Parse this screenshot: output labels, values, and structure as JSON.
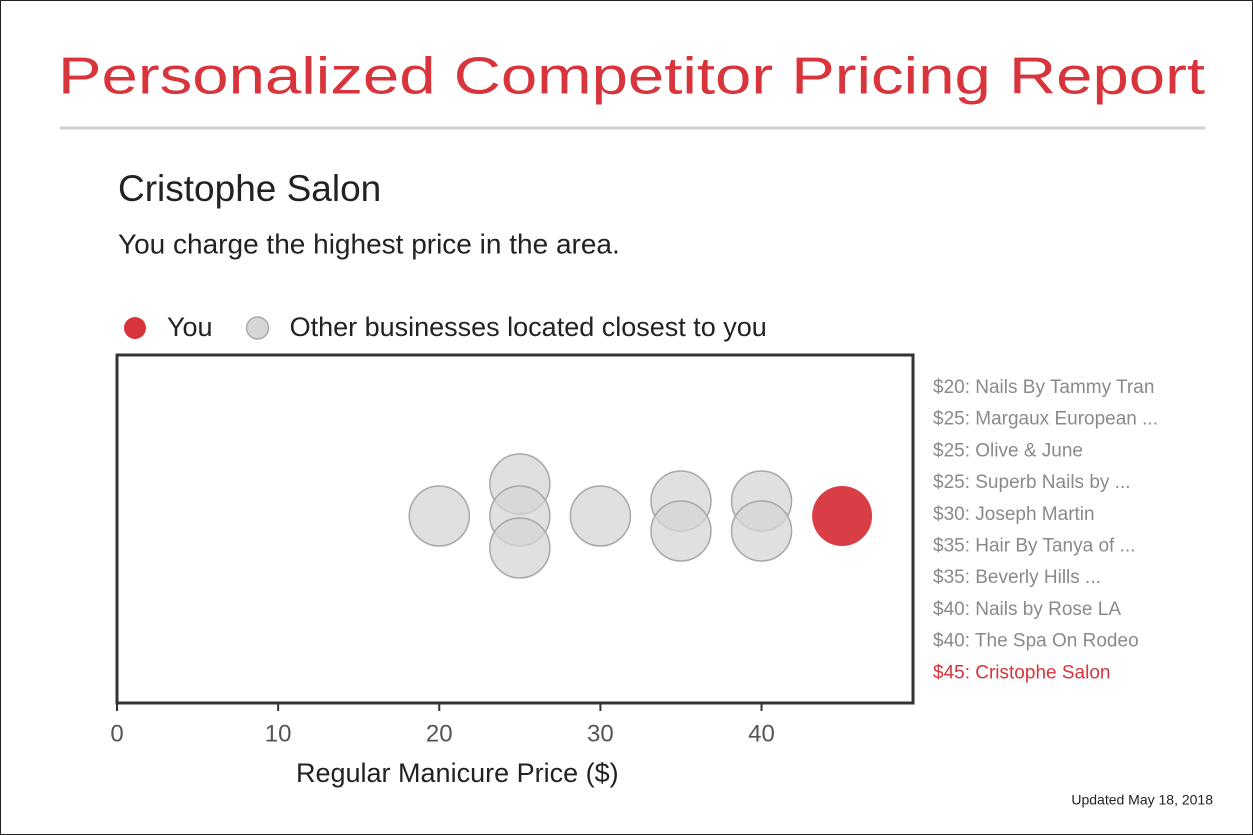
{
  "chart_data": {
    "type": "scatter",
    "title": "Personalized Competitor Pricing Report",
    "business": "Cristophe Salon",
    "subtitle": "You charge the highest price in the area.",
    "xlabel": "Regular Manicure Price ($)",
    "note": "Updated May 18, 2018",
    "xlim": [
      0,
      49.4
    ],
    "xticks": [
      0,
      10,
      20,
      30,
      40
    ],
    "series": [
      {
        "name": "You",
        "color": "#d8343b",
        "values": [
          45
        ],
        "labels": [
          "$45: Cristophe Salon"
        ]
      },
      {
        "name": "Other businesses located closest to you",
        "color": "#d6d6d6",
        "values": [
          20,
          25,
          25,
          25,
          30,
          35,
          35,
          40,
          40
        ],
        "labels": [
          "$20: Nails By Tammy Tran",
          "$25: Margaux European ...",
          "$25: Olive & June",
          "$25: Superb Nails by ...",
          "$30: Joseph Martin",
          "$35: Hair By Tanya of ...",
          "$35: Beverly Hills ...",
          "$40: Nails by Rose LA",
          "$40: The Spa On Rodeo"
        ]
      }
    ]
  }
}
